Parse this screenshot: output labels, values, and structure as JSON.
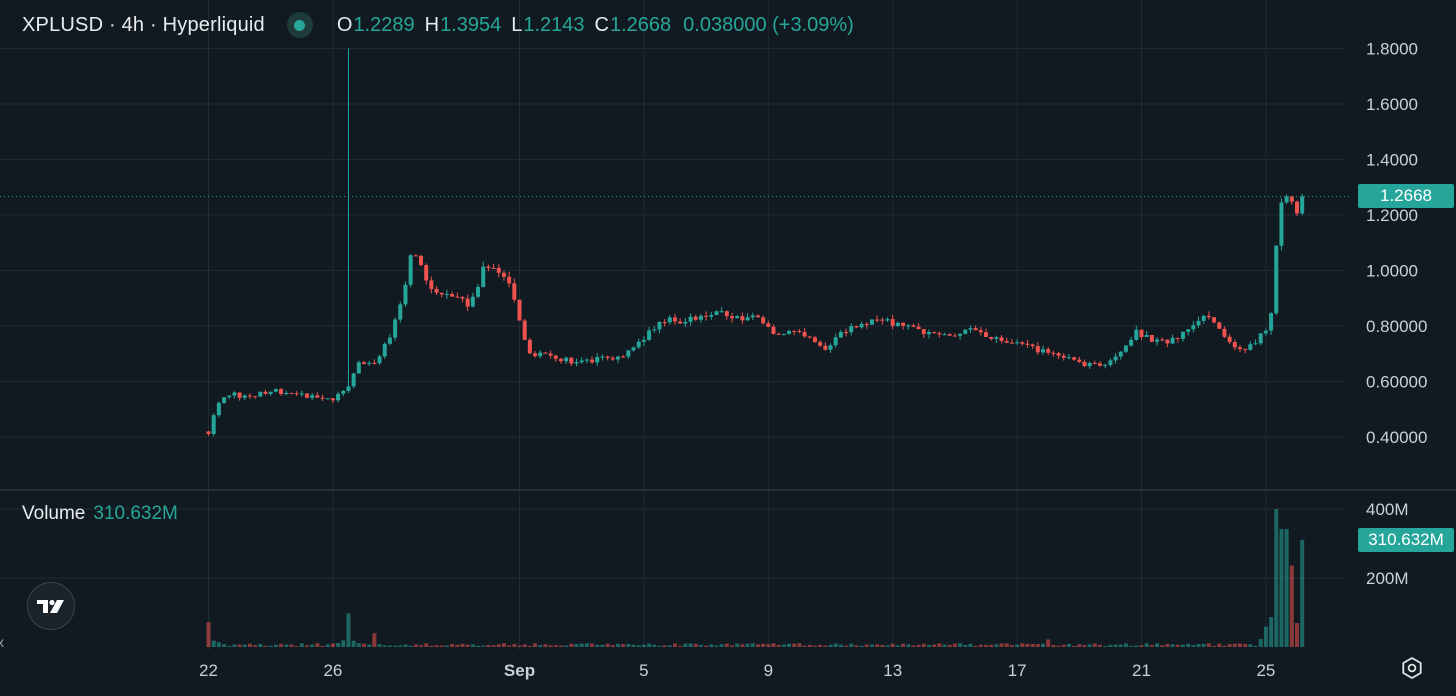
{
  "header": {
    "symbol": "XPLUSD · 4h · Hyperliquid",
    "open_key": "O",
    "open": "1.2289",
    "high_key": "H",
    "high": "1.3954",
    "low_key": "L",
    "low": "1.2143",
    "close_key": "C",
    "close": "1.2668",
    "change": "0.038000 (+3.09%)"
  },
  "volume_panel": {
    "label": "Volume",
    "value": "310.632M"
  },
  "colors": {
    "up": "#26a69a",
    "down": "#ef5350",
    "background": "#111a20",
    "grid": "#1f2a31",
    "axis_text": "#c9d1d5"
  },
  "icons": {
    "logo": "tradingview-logo-icon",
    "settings": "settings-gear-icon"
  },
  "chart_data": {
    "type": "candlestick",
    "timeframe": "4h",
    "price_axis": {
      "ticks": [
        "1.8000",
        "1.6000",
        "1.4000",
        "1.2000",
        "1.0000",
        "0.80000",
        "0.60000",
        "0.40000"
      ],
      "tick_values": [
        1.8,
        1.6,
        1.4,
        1.2,
        1.0,
        0.8,
        0.6,
        0.4
      ],
      "last_price_label": "1.2668",
      "last_price": 1.2668
    },
    "volume_axis": {
      "ticks": [
        "400M",
        "200M"
      ],
      "tick_values": [
        400,
        200
      ],
      "last_volume_label": "310.632M",
      "last_volume": 310.632
    },
    "x_axis": {
      "labels": [
        "22",
        "26",
        "Sep",
        "5",
        "9",
        "13",
        "17",
        "21",
        "25"
      ],
      "label_days": [
        22,
        26,
        32,
        36,
        40,
        44,
        48,
        52,
        56
      ],
      "start_day": 22,
      "end_day": 57.1
    },
    "anchors": [
      [
        22.0,
        0.42
      ],
      [
        22.2,
        0.5
      ],
      [
        22.7,
        0.56
      ],
      [
        23.2,
        0.54
      ],
      [
        24.0,
        0.57
      ],
      [
        25.0,
        0.55
      ],
      [
        26.0,
        0.54
      ],
      [
        26.5,
        0.58
      ],
      [
        26.8,
        0.68
      ],
      [
        27.3,
        0.66
      ],
      [
        27.8,
        0.75
      ],
      [
        28.3,
        0.94
      ],
      [
        28.5,
        1.06
      ],
      [
        28.8,
        1.02
      ],
      [
        29.2,
        0.92
      ],
      [
        29.8,
        0.9
      ],
      [
        30.4,
        0.88
      ],
      [
        30.9,
        1.02
      ],
      [
        31.3,
        1.0
      ],
      [
        31.7,
        0.95
      ],
      [
        32.0,
        0.82
      ],
      [
        32.3,
        0.7
      ],
      [
        32.8,
        0.7
      ],
      [
        33.3,
        0.68
      ],
      [
        34.0,
        0.67
      ],
      [
        34.6,
        0.68
      ],
      [
        35.2,
        0.68
      ],
      [
        35.8,
        0.74
      ],
      [
        36.3,
        0.79
      ],
      [
        36.8,
        0.83
      ],
      [
        37.2,
        0.81
      ],
      [
        37.8,
        0.84
      ],
      [
        38.4,
        0.85
      ],
      [
        39.0,
        0.83
      ],
      [
        39.6,
        0.83
      ],
      [
        40.3,
        0.77
      ],
      [
        40.8,
        0.79
      ],
      [
        41.3,
        0.75
      ],
      [
        41.8,
        0.72
      ],
      [
        42.3,
        0.77
      ],
      [
        42.8,
        0.8
      ],
      [
        43.5,
        0.82
      ],
      [
        44.0,
        0.81
      ],
      [
        44.6,
        0.79
      ],
      [
        45.3,
        0.77
      ],
      [
        46.0,
        0.77
      ],
      [
        46.5,
        0.79
      ],
      [
        47.0,
        0.76
      ],
      [
        47.6,
        0.74
      ],
      [
        48.2,
        0.73
      ],
      [
        48.8,
        0.71
      ],
      [
        49.3,
        0.7
      ],
      [
        49.8,
        0.67
      ],
      [
        50.3,
        0.66
      ],
      [
        50.8,
        0.66
      ],
      [
        51.3,
        0.7
      ],
      [
        51.8,
        0.78
      ],
      [
        52.2,
        0.76
      ],
      [
        52.7,
        0.74
      ],
      [
        53.1,
        0.76
      ],
      [
        53.5,
        0.78
      ],
      [
        54.0,
        0.84
      ],
      [
        54.5,
        0.8
      ],
      [
        54.9,
        0.72
      ],
      [
        55.3,
        0.7
      ],
      [
        55.8,
        0.76
      ],
      [
        56.0,
        0.78
      ],
      [
        56.2,
        0.85
      ],
      [
        56.4,
        1.2
      ],
      [
        56.6,
        1.28
      ],
      [
        56.8,
        1.24
      ],
      [
        57.0,
        1.21
      ],
      [
        57.1,
        1.2668
      ]
    ],
    "spike_bar": {
      "day": 26.5,
      "high": 1.8
    },
    "volume_spikes": [
      [
        22.0,
        72
      ],
      [
        26.5,
        98
      ],
      [
        27.3,
        40
      ],
      [
        49.0,
        22
      ],
      [
        55.9,
        22
      ],
      [
        56.3,
        400
      ],
      [
        56.5,
        342
      ],
      [
        56.7,
        342
      ],
      [
        56.9,
        236
      ],
      [
        57.1,
        310.632
      ]
    ]
  }
}
